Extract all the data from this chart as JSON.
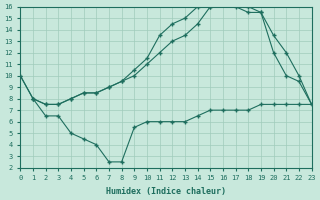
{
  "xlabel": "Humidex (Indice chaleur)",
  "bg_color": "#c8e8dc",
  "grid_color": "#a0ccbc",
  "line_color": "#1e6e5e",
  "xlim": [
    0,
    23
  ],
  "ylim": [
    2,
    16
  ],
  "xticks": [
    0,
    1,
    2,
    3,
    4,
    5,
    6,
    7,
    8,
    9,
    10,
    11,
    12,
    13,
    14,
    15,
    16,
    17,
    18,
    19,
    20,
    21,
    22,
    23
  ],
  "yticks": [
    2,
    3,
    4,
    5,
    6,
    7,
    8,
    9,
    10,
    11,
    12,
    13,
    14,
    15,
    16
  ],
  "line1_x": [
    0,
    1,
    2,
    3,
    4,
    5,
    6,
    7,
    8,
    9,
    10,
    11,
    12,
    13,
    14,
    15,
    16,
    17,
    18,
    19,
    20,
    21,
    22,
    23
  ],
  "line1_y": [
    10,
    8,
    7.5,
    7.5,
    8,
    8.5,
    8.5,
    9,
    9.5,
    10.5,
    11.5,
    13.5,
    14.5,
    15.0,
    16.0,
    16.0,
    16.5,
    16.0,
    15.5,
    15.5,
    12.0,
    10,
    9.5,
    7.5
  ],
  "line2_x": [
    0,
    1,
    2,
    3,
    4,
    5,
    6,
    7,
    8,
    9,
    10,
    11,
    12,
    13,
    14,
    15,
    16,
    17,
    18,
    19,
    20,
    21,
    22,
    23
  ],
  "line2_y": [
    10,
    8,
    7.5,
    7.5,
    8,
    8.5,
    8.5,
    9,
    9.5,
    10,
    11,
    12,
    13,
    13.5,
    14.5,
    16.0,
    16.5,
    16.5,
    16.0,
    15.5,
    13.5,
    12,
    10,
    7.5
  ],
  "line3_x": [
    1,
    2,
    3,
    4,
    5,
    6,
    7,
    8,
    9,
    10,
    11,
    12,
    13,
    14,
    15,
    16,
    17,
    18,
    19,
    20,
    21,
    22,
    23
  ],
  "line3_y": [
    8,
    6.5,
    6.5,
    5,
    4.5,
    4,
    2.5,
    2.5,
    5.5,
    6,
    6,
    6,
    6,
    6.5,
    7,
    7,
    7,
    7,
    7.5,
    7.5,
    7.5,
    7.5,
    7.5
  ]
}
